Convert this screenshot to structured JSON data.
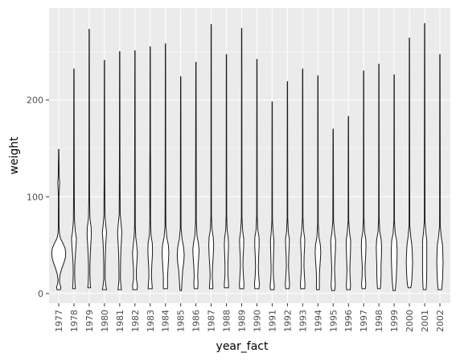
{
  "chart_data": {
    "type": "violin",
    "xlabel": "year_fact",
    "ylabel": "weight",
    "categories": [
      "1977",
      "1978",
      "1979",
      "1980",
      "1981",
      "1982",
      "1983",
      "1984",
      "1985",
      "1986",
      "1987",
      "1988",
      "1989",
      "1990",
      "1991",
      "1992",
      "1993",
      "1994",
      "1995",
      "1996",
      "1997",
      "1998",
      "1999",
      "2000",
      "2001",
      "2002"
    ],
    "y_ticks": [
      0,
      100,
      200
    ],
    "ylim": [
      -10,
      295
    ],
    "grid": true,
    "colors": {
      "panel": "#ebebeb",
      "grid": "#ffffff",
      "outline": "#1a1a1a",
      "tick_text": "#4d4d4d"
    },
    "violins": [
      {
        "min": 4,
        "max": 149,
        "profile": [
          [
            4,
            0.25
          ],
          [
            7,
            0.3
          ],
          [
            10,
            0.15
          ],
          [
            14,
            0.1
          ],
          [
            20,
            0.2
          ],
          [
            26,
            0.45
          ],
          [
            32,
            0.75
          ],
          [
            37,
            0.95
          ],
          [
            42,
            1.0
          ],
          [
            47,
            0.9
          ],
          [
            52,
            0.6
          ],
          [
            57,
            0.25
          ],
          [
            62,
            0.1
          ],
          [
            70,
            0.05
          ],
          [
            100,
            0.04
          ],
          [
            110,
            0.1
          ],
          [
            115,
            0.13
          ],
          [
            120,
            0.07
          ],
          [
            149,
            0.02
          ]
        ]
      },
      {
        "min": 5,
        "max": 232,
        "profile": [
          [
            5,
            0.2
          ],
          [
            10,
            0.15
          ],
          [
            20,
            0.1
          ],
          [
            30,
            0.12
          ],
          [
            40,
            0.2
          ],
          [
            50,
            0.3
          ],
          [
            57,
            0.35
          ],
          [
            64,
            0.2
          ],
          [
            75,
            0.08
          ],
          [
            100,
            0.05
          ],
          [
            140,
            0.04
          ],
          [
            232,
            0.02
          ]
        ]
      },
      {
        "min": 6,
        "max": 273,
        "profile": [
          [
            6,
            0.2
          ],
          [
            10,
            0.15
          ],
          [
            20,
            0.1
          ],
          [
            30,
            0.1
          ],
          [
            40,
            0.15
          ],
          [
            50,
            0.22
          ],
          [
            60,
            0.3
          ],
          [
            68,
            0.28
          ],
          [
            78,
            0.1
          ],
          [
            100,
            0.05
          ],
          [
            150,
            0.04
          ],
          [
            273,
            0.02
          ]
        ]
      },
      {
        "min": 4,
        "max": 241,
        "profile": [
          [
            4,
            0.3
          ],
          [
            8,
            0.2
          ],
          [
            15,
            0.1
          ],
          [
            30,
            0.1
          ],
          [
            45,
            0.15
          ],
          [
            55,
            0.22
          ],
          [
            63,
            0.3
          ],
          [
            70,
            0.2
          ],
          [
            80,
            0.08
          ],
          [
            120,
            0.04
          ],
          [
            241,
            0.02
          ]
        ]
      },
      {
        "min": 4,
        "max": 250,
        "profile": [
          [
            4,
            0.25
          ],
          [
            8,
            0.18
          ],
          [
            15,
            0.1
          ],
          [
            30,
            0.12
          ],
          [
            45,
            0.17
          ],
          [
            55,
            0.25
          ],
          [
            64,
            0.3
          ],
          [
            72,
            0.2
          ],
          [
            82,
            0.07
          ],
          [
            130,
            0.04
          ],
          [
            250,
            0.02
          ]
        ]
      },
      {
        "min": 4,
        "max": 251,
        "profile": [
          [
            4,
            0.3
          ],
          [
            8,
            0.35
          ],
          [
            15,
            0.2
          ],
          [
            25,
            0.2
          ],
          [
            35,
            0.3
          ],
          [
            42,
            0.35
          ],
          [
            50,
            0.25
          ],
          [
            58,
            0.12
          ],
          [
            70,
            0.05
          ],
          [
            130,
            0.04
          ],
          [
            251,
            0.02
          ]
        ]
      },
      {
        "min": 5,
        "max": 255,
        "profile": [
          [
            5,
            0.3
          ],
          [
            10,
            0.25
          ],
          [
            18,
            0.18
          ],
          [
            28,
            0.22
          ],
          [
            38,
            0.3
          ],
          [
            44,
            0.33
          ],
          [
            52,
            0.3
          ],
          [
            60,
            0.12
          ],
          [
            75,
            0.05
          ],
          [
            120,
            0.07
          ],
          [
            150,
            0.04
          ],
          [
            255,
            0.02
          ]
        ]
      },
      {
        "min": 5,
        "max": 258,
        "profile": [
          [
            5,
            0.3
          ],
          [
            10,
            0.3
          ],
          [
            18,
            0.3
          ],
          [
            28,
            0.38
          ],
          [
            36,
            0.45
          ],
          [
            42,
            0.48
          ],
          [
            50,
            0.42
          ],
          [
            58,
            0.2
          ],
          [
            70,
            0.06
          ],
          [
            120,
            0.04
          ],
          [
            258,
            0.02
          ]
        ]
      },
      {
        "min": 3,
        "max": 224,
        "profile": [
          [
            3,
            0.1
          ],
          [
            8,
            0.15
          ],
          [
            15,
            0.2
          ],
          [
            25,
            0.3
          ],
          [
            33,
            0.45
          ],
          [
            40,
            0.5
          ],
          [
            48,
            0.42
          ],
          [
            56,
            0.2
          ],
          [
            68,
            0.05
          ],
          [
            120,
            0.04
          ],
          [
            224,
            0.02
          ]
        ]
      },
      {
        "min": 5,
        "max": 239,
        "profile": [
          [
            5,
            0.25
          ],
          [
            10,
            0.3
          ],
          [
            18,
            0.25
          ],
          [
            28,
            0.3
          ],
          [
            38,
            0.4
          ],
          [
            45,
            0.45
          ],
          [
            52,
            0.35
          ],
          [
            60,
            0.15
          ],
          [
            75,
            0.05
          ],
          [
            120,
            0.05
          ],
          [
            239,
            0.02
          ]
        ]
      },
      {
        "min": 5,
        "max": 278,
        "profile": [
          [
            5,
            0.25
          ],
          [
            10,
            0.22
          ],
          [
            18,
            0.15
          ],
          [
            28,
            0.2
          ],
          [
            40,
            0.3
          ],
          [
            50,
            0.35
          ],
          [
            58,
            0.3
          ],
          [
            66,
            0.12
          ],
          [
            80,
            0.04
          ],
          [
            278,
            0.02
          ]
        ]
      },
      {
        "min": 6,
        "max": 247,
        "profile": [
          [
            6,
            0.3
          ],
          [
            10,
            0.3
          ],
          [
            18,
            0.22
          ],
          [
            28,
            0.2
          ],
          [
            40,
            0.25
          ],
          [
            50,
            0.3
          ],
          [
            58,
            0.25
          ],
          [
            66,
            0.1
          ],
          [
            80,
            0.04
          ],
          [
            247,
            0.02
          ]
        ]
      },
      {
        "min": 5,
        "max": 274,
        "profile": [
          [
            5,
            0.3
          ],
          [
            10,
            0.32
          ],
          [
            18,
            0.25
          ],
          [
            28,
            0.18
          ],
          [
            38,
            0.2
          ],
          [
            48,
            0.28
          ],
          [
            56,
            0.3
          ],
          [
            64,
            0.15
          ],
          [
            78,
            0.04
          ],
          [
            274,
            0.02
          ]
        ]
      },
      {
        "min": 5,
        "max": 242,
        "profile": [
          [
            5,
            0.3
          ],
          [
            10,
            0.35
          ],
          [
            18,
            0.25
          ],
          [
            28,
            0.2
          ],
          [
            40,
            0.25
          ],
          [
            50,
            0.32
          ],
          [
            58,
            0.3
          ],
          [
            66,
            0.12
          ],
          [
            80,
            0.04
          ],
          [
            242,
            0.02
          ]
        ]
      },
      {
        "min": 4,
        "max": 198,
        "profile": [
          [
            4,
            0.25
          ],
          [
            8,
            0.3
          ],
          [
            15,
            0.2
          ],
          [
            25,
            0.15
          ],
          [
            35,
            0.18
          ],
          [
            45,
            0.22
          ],
          [
            55,
            0.25
          ],
          [
            62,
            0.15
          ],
          [
            75,
            0.04
          ],
          [
            198,
            0.02
          ]
        ]
      },
      {
        "min": 5,
        "max": 219,
        "profile": [
          [
            5,
            0.25
          ],
          [
            10,
            0.3
          ],
          [
            18,
            0.22
          ],
          [
            28,
            0.15
          ],
          [
            38,
            0.18
          ],
          [
            48,
            0.25
          ],
          [
            56,
            0.28
          ],
          [
            64,
            0.12
          ],
          [
            78,
            0.04
          ],
          [
            219,
            0.02
          ]
        ]
      },
      {
        "min": 5,
        "max": 232,
        "profile": [
          [
            5,
            0.3
          ],
          [
            10,
            0.32
          ],
          [
            18,
            0.25
          ],
          [
            28,
            0.18
          ],
          [
            38,
            0.2
          ],
          [
            48,
            0.27
          ],
          [
            56,
            0.3
          ],
          [
            64,
            0.15
          ],
          [
            78,
            0.04
          ],
          [
            232,
            0.02
          ]
        ]
      },
      {
        "min": 4,
        "max": 225,
        "profile": [
          [
            4,
            0.2
          ],
          [
            8,
            0.22
          ],
          [
            15,
            0.2
          ],
          [
            25,
            0.25
          ],
          [
            35,
            0.35
          ],
          [
            42,
            0.4
          ],
          [
            50,
            0.35
          ],
          [
            58,
            0.15
          ],
          [
            72,
            0.04
          ],
          [
            225,
            0.02
          ]
        ]
      },
      {
        "min": 3,
        "max": 170,
        "profile": [
          [
            3,
            0.2
          ],
          [
            8,
            0.3
          ],
          [
            15,
            0.25
          ],
          [
            25,
            0.2
          ],
          [
            35,
            0.25
          ],
          [
            45,
            0.32
          ],
          [
            55,
            0.35
          ],
          [
            62,
            0.2
          ],
          [
            75,
            0.05
          ],
          [
            170,
            0.02
          ]
        ]
      },
      {
        "min": 4,
        "max": 183,
        "profile": [
          [
            4,
            0.25
          ],
          [
            8,
            0.3
          ],
          [
            15,
            0.25
          ],
          [
            25,
            0.2
          ],
          [
            35,
            0.25
          ],
          [
            45,
            0.3
          ],
          [
            55,
            0.32
          ],
          [
            62,
            0.18
          ],
          [
            75,
            0.04
          ],
          [
            183,
            0.02
          ]
        ]
      },
      {
        "min": 5,
        "max": 230,
        "profile": [
          [
            5,
            0.25
          ],
          [
            10,
            0.3
          ],
          [
            18,
            0.22
          ],
          [
            28,
            0.2
          ],
          [
            38,
            0.28
          ],
          [
            48,
            0.33
          ],
          [
            56,
            0.3
          ],
          [
            64,
            0.12
          ],
          [
            78,
            0.04
          ],
          [
            230,
            0.02
          ]
        ]
      },
      {
        "min": 5,
        "max": 237,
        "profile": [
          [
            5,
            0.2
          ],
          [
            10,
            0.25
          ],
          [
            18,
            0.3
          ],
          [
            28,
            0.3
          ],
          [
            38,
            0.35
          ],
          [
            48,
            0.38
          ],
          [
            56,
            0.32
          ],
          [
            64,
            0.12
          ],
          [
            78,
            0.04
          ],
          [
            237,
            0.02
          ]
        ]
      },
      {
        "min": 3,
        "max": 226,
        "profile": [
          [
            3,
            0.15
          ],
          [
            8,
            0.22
          ],
          [
            15,
            0.3
          ],
          [
            25,
            0.35
          ],
          [
            35,
            0.4
          ],
          [
            45,
            0.42
          ],
          [
            55,
            0.35
          ],
          [
            62,
            0.15
          ],
          [
            75,
            0.04
          ],
          [
            226,
            0.02
          ]
        ]
      },
      {
        "min": 6,
        "max": 264,
        "profile": [
          [
            6,
            0.2
          ],
          [
            10,
            0.3
          ],
          [
            18,
            0.38
          ],
          [
            25,
            0.42
          ],
          [
            32,
            0.45
          ],
          [
            40,
            0.42
          ],
          [
            50,
            0.35
          ],
          [
            58,
            0.2
          ],
          [
            70,
            0.05
          ],
          [
            264,
            0.02
          ]
        ]
      },
      {
        "min": 4,
        "max": 279,
        "profile": [
          [
            4,
            0.2
          ],
          [
            8,
            0.25
          ],
          [
            15,
            0.28
          ],
          [
            25,
            0.3
          ],
          [
            35,
            0.3
          ],
          [
            45,
            0.3
          ],
          [
            55,
            0.3
          ],
          [
            62,
            0.18
          ],
          [
            75,
            0.05
          ],
          [
            279,
            0.02
          ]
        ]
      },
      {
        "min": 4,
        "max": 247,
        "profile": [
          [
            4,
            0.25
          ],
          [
            8,
            0.3
          ],
          [
            15,
            0.38
          ],
          [
            25,
            0.42
          ],
          [
            32,
            0.45
          ],
          [
            40,
            0.42
          ],
          [
            50,
            0.38
          ],
          [
            58,
            0.2
          ],
          [
            70,
            0.05
          ],
          [
            247,
            0.02
          ]
        ]
      }
    ]
  }
}
